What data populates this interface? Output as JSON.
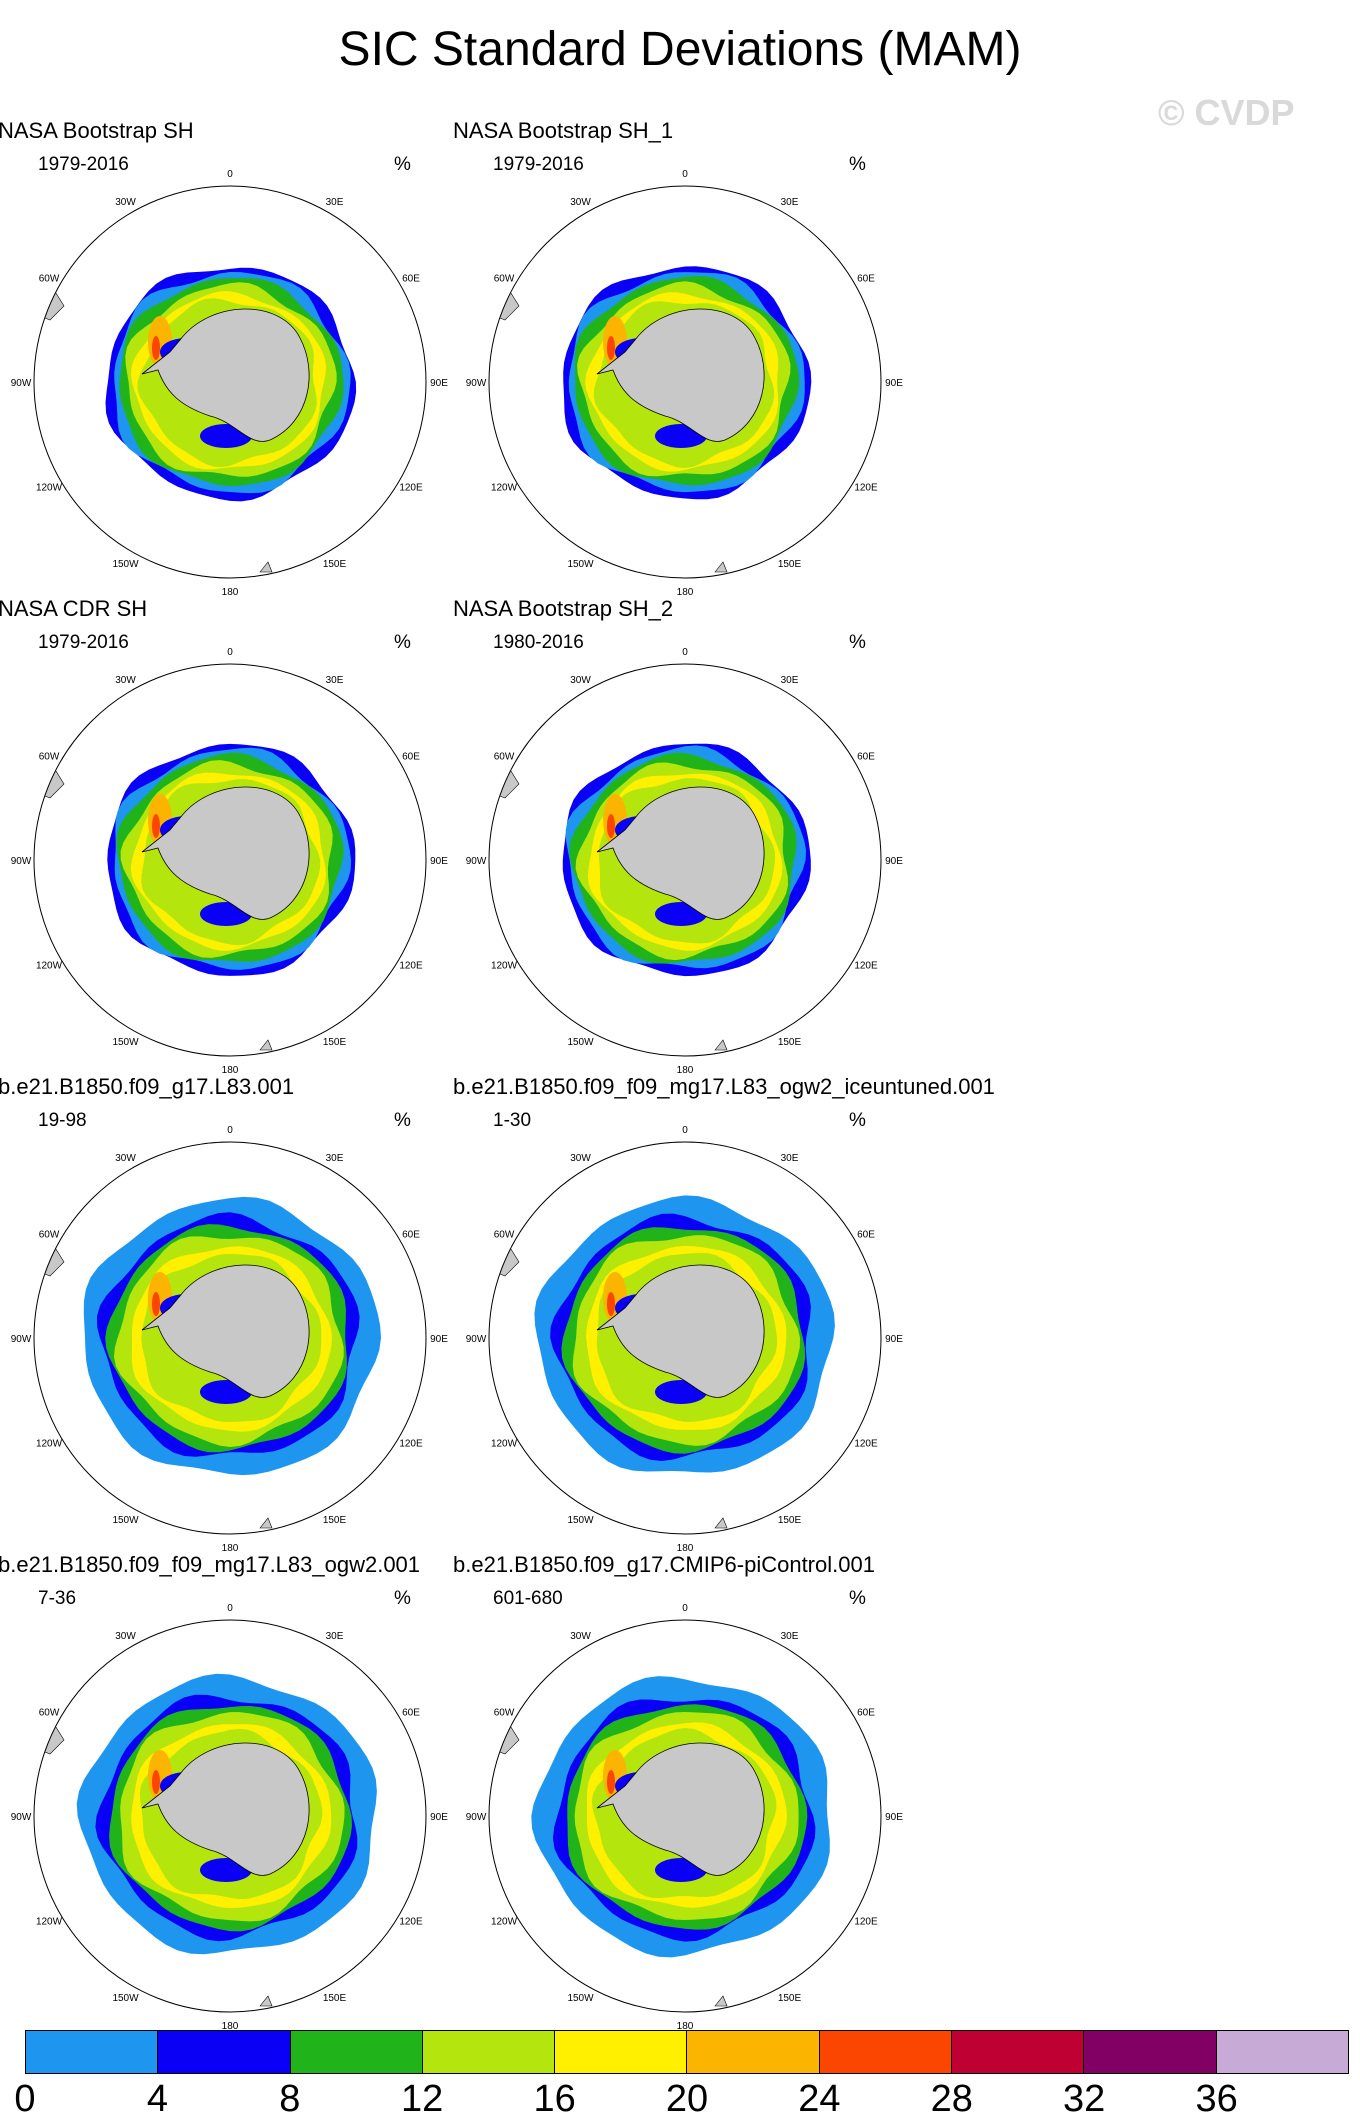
{
  "title": "SIC Standard Deviations (MAM)",
  "watermark": "© CVDP",
  "units": "%",
  "longitude_labels": [
    "0",
    "30E",
    "60E",
    "90E",
    "120E",
    "150E",
    "180",
    "150W",
    "120W",
    "90W",
    "60W",
    "30W"
  ],
  "panels": [
    {
      "title": "NASA Bootstrap SH",
      "years": "1979-2016",
      "ice_style": "observed"
    },
    {
      "title": "NASA Bootstrap SH_1",
      "years": "1979-2016",
      "ice_style": "observed"
    },
    {
      "title": "NASA CDR SH",
      "years": "1979-2016",
      "ice_style": "observed"
    },
    {
      "title": "NASA Bootstrap SH_2",
      "years": "1980-2016",
      "ice_style": "observed"
    },
    {
      "title": "b.e21.B1850.f09_g17.L83.001",
      "years": "19-98",
      "ice_style": "model"
    },
    {
      "title": "b.e21.B1850.f09_f09_mg17.L83_ogw2_iceuntuned.001",
      "years": "1-30",
      "ice_style": "model"
    },
    {
      "title": "b.e21.B1850.f09_f09_mg17.L83_ogw2.001",
      "years": "7-36",
      "ice_style": "model"
    },
    {
      "title": "b.e21.B1850.f09_g17.CMIP6-piControl.001",
      "years": "601-680",
      "ice_style": "model"
    }
  ],
  "colorbar": {
    "levels": [
      "0",
      "4",
      "8",
      "12",
      "16",
      "20",
      "24",
      "28",
      "32",
      "36"
    ],
    "colors": [
      "#1e96f0",
      "#0a00f5",
      "#21b41a",
      "#b4e60e",
      "#fff000",
      "#fbb400",
      "#fa4600",
      "#be0032",
      "#820064",
      "#c8aad7"
    ]
  },
  "land_color": "#c8c8c8"
}
